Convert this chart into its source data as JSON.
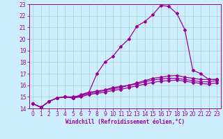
{
  "xlabel": "Windchill (Refroidissement éolien,°C)",
  "bg_color": "#cceeff",
  "line_color": "#990099",
  "grid_color": "#aacccc",
  "xlim": [
    -0.5,
    23.5
  ],
  "ylim": [
    14,
    23
  ],
  "xticks": [
    0,
    1,
    2,
    3,
    4,
    5,
    6,
    7,
    8,
    9,
    10,
    11,
    12,
    13,
    14,
    15,
    16,
    17,
    18,
    19,
    20,
    21,
    22,
    23
  ],
  "yticks": [
    14,
    15,
    16,
    17,
    18,
    19,
    20,
    21,
    22,
    23
  ],
  "line1_x": [
    0,
    1,
    2,
    3,
    4,
    5,
    6,
    7,
    8,
    9,
    10,
    11,
    12,
    13,
    14,
    15,
    16,
    17,
    18,
    19,
    20,
    21,
    22,
    23
  ],
  "line1_y": [
    14.4,
    14.1,
    14.6,
    14.9,
    15.0,
    15.0,
    15.1,
    15.4,
    17.0,
    18.0,
    18.5,
    19.35,
    20.0,
    21.1,
    21.5,
    22.1,
    22.9,
    22.8,
    22.2,
    20.8,
    17.3,
    17.0,
    16.5,
    16.5
  ],
  "line2_x": [
    0,
    1,
    2,
    3,
    4,
    5,
    6,
    7,
    8,
    9,
    10,
    11,
    12,
    13,
    14,
    15,
    16,
    17,
    18,
    19,
    20,
    21,
    22,
    23
  ],
  "line2_y": [
    14.4,
    14.1,
    14.6,
    14.9,
    15.0,
    14.9,
    15.2,
    15.4,
    15.5,
    15.6,
    15.8,
    15.9,
    16.0,
    16.2,
    16.4,
    16.6,
    16.7,
    16.8,
    16.85,
    16.7,
    16.6,
    16.5,
    16.5,
    16.5
  ],
  "line3_x": [
    0,
    1,
    2,
    3,
    4,
    5,
    6,
    7,
    8,
    9,
    10,
    11,
    12,
    13,
    14,
    15,
    16,
    17,
    18,
    19,
    20,
    21,
    22,
    23
  ],
  "line3_y": [
    14.4,
    14.1,
    14.6,
    14.9,
    15.0,
    14.9,
    15.1,
    15.3,
    15.4,
    15.55,
    15.7,
    15.8,
    16.0,
    16.1,
    16.3,
    16.45,
    16.55,
    16.6,
    16.6,
    16.5,
    16.4,
    16.3,
    16.3,
    16.4
  ],
  "line4_x": [
    0,
    1,
    2,
    3,
    4,
    5,
    6,
    7,
    8,
    9,
    10,
    11,
    12,
    13,
    14,
    15,
    16,
    17,
    18,
    19,
    20,
    21,
    22,
    23
  ],
  "line4_y": [
    14.4,
    14.1,
    14.6,
    14.9,
    15.0,
    14.9,
    15.0,
    15.2,
    15.3,
    15.4,
    15.55,
    15.65,
    15.8,
    15.95,
    16.1,
    16.25,
    16.35,
    16.4,
    16.45,
    16.35,
    16.25,
    16.15,
    16.1,
    16.2
  ],
  "xlabel_fontsize": 5.5,
  "tick_fontsize": 5.5,
  "marker_size": 2.0,
  "line_width": 0.9
}
